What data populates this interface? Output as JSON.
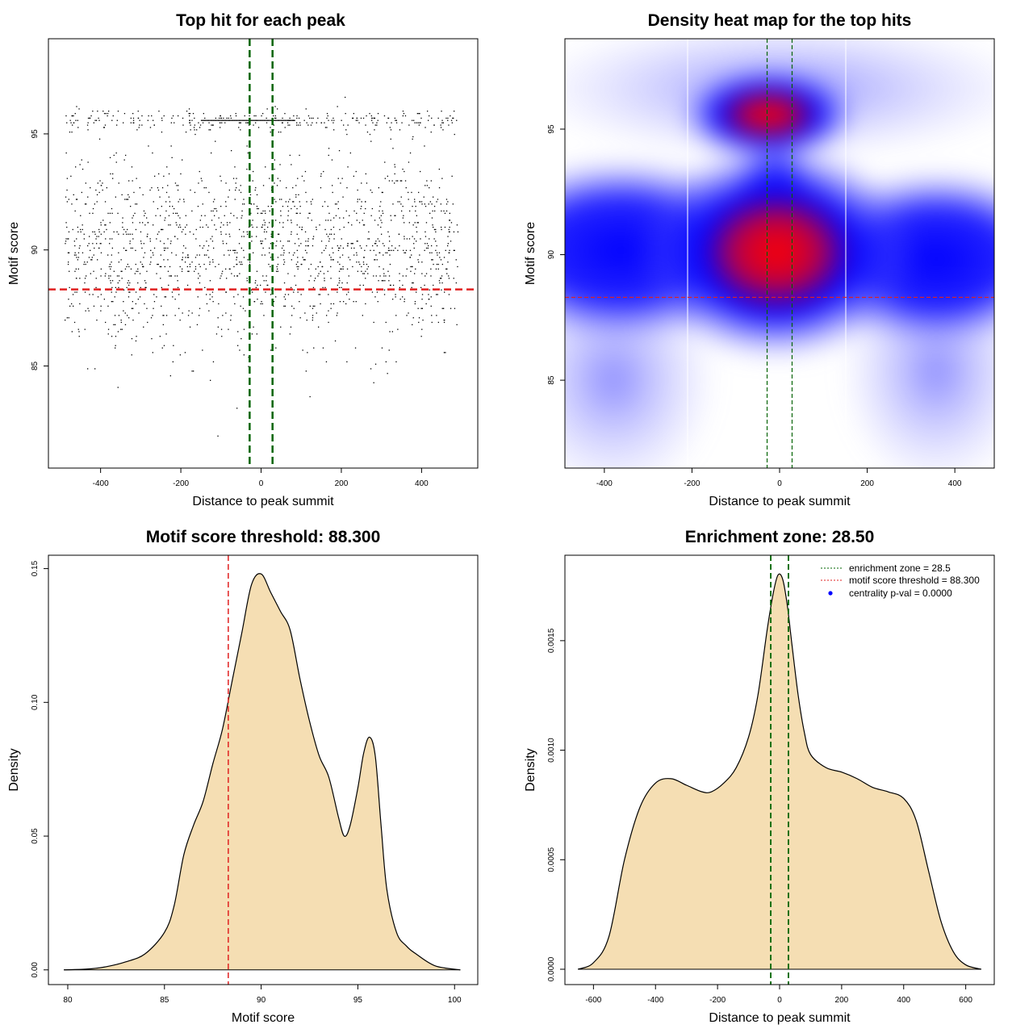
{
  "chart_data": [
    {
      "type": "scatter",
      "title": "Top hit for each peak",
      "xlabel": "Distance to peak summit",
      "ylabel": "Motif score",
      "xlim": [
        -530,
        540
      ],
      "ylim": [
        80.6,
        99.1
      ],
      "xticks": [
        -400,
        -200,
        0,
        200,
        400
      ],
      "yticks": [
        85,
        90,
        95
      ],
      "xtick_labels": [
        "-400",
        "-200",
        "0",
        "200",
        "400"
      ],
      "ytick_labels": [
        "85",
        "90",
        "95"
      ],
      "point_distribution": {
        "x_range": [
          -490,
          490
        ],
        "y_range": [
          81.5,
          98.5
        ],
        "main_cluster_y": 90.0,
        "secondary_cluster_y": 95.6,
        "approx_points": 1900
      },
      "reference_lines": {
        "vertical": [
          -28.5,
          28.5
        ],
        "vertical_color": "#006400",
        "horizontal": [
          88.3
        ],
        "horizontal_color": "#e02020"
      }
    },
    {
      "type": "heatmap",
      "title": "Density heat map for the top hits",
      "xlabel": "Distance to peak summit",
      "ylabel": "Motif score",
      "xlim": [
        -490,
        490
      ],
      "ylim": [
        81.5,
        98.6
      ],
      "xticks": [
        -400,
        -200,
        0,
        200,
        400
      ],
      "yticks": [
        85,
        90,
        95
      ],
      "xtick_labels": [
        "-400",
        "-200",
        "0",
        "200",
        "400"
      ],
      "ytick_labels": [
        "85",
        "90",
        "95"
      ],
      "colors": [
        "#ffffff",
        "#0000ff",
        "#ff0000"
      ],
      "density_peaks": [
        {
          "x": -20,
          "y": 95.6,
          "level": "high"
        },
        {
          "x": 0,
          "y": 90.2,
          "level": "high"
        },
        {
          "x": -380,
          "y": 90.0,
          "level": "medium"
        },
        {
          "x": 380,
          "y": 90.0,
          "level": "medium"
        }
      ],
      "reference_lines": {
        "vertical": [
          -28.5,
          28.5
        ],
        "vertical_color": "#006400",
        "horizontal": [
          88.3
        ],
        "horizontal_color": "#e02020"
      }
    },
    {
      "type": "area",
      "title": "Motif score threshold: 88.300",
      "xlabel": "Motif score",
      "ylabel": "Density",
      "xlim": [
        79.0,
        101.2
      ],
      "ylim": [
        -0.0055,
        0.155
      ],
      "xticks": [
        80,
        85,
        90,
        95,
        100
      ],
      "yticks": [
        0.0,
        0.05,
        0.1,
        0.15
      ],
      "xtick_labels": [
        "80",
        "85",
        "90",
        "95",
        "100"
      ],
      "ytick_labels": [
        "0.00",
        "0.05",
        "0.10",
        "0.15"
      ],
      "fill_color": "#f5deb3",
      "x": [
        79.8,
        81,
        82,
        83,
        84,
        85,
        85.5,
        86,
        86.5,
        87,
        87.5,
        88,
        88.5,
        89,
        89.5,
        90,
        90.5,
        91,
        91.5,
        92,
        92.5,
        93,
        93.5,
        94,
        94.3,
        94.6,
        95,
        95.3,
        95.6,
        95.9,
        96.2,
        96.5,
        97,
        97.5,
        98,
        99,
        100.3
      ],
      "y": [
        0.0,
        0.0003,
        0.0012,
        0.003,
        0.006,
        0.014,
        0.024,
        0.043,
        0.054,
        0.063,
        0.077,
        0.09,
        0.108,
        0.126,
        0.144,
        0.148,
        0.141,
        0.134,
        0.127,
        0.109,
        0.093,
        0.08,
        0.072,
        0.057,
        0.05,
        0.054,
        0.068,
        0.081,
        0.087,
        0.08,
        0.054,
        0.03,
        0.014,
        0.009,
        0.006,
        0.0015,
        0.0
      ],
      "reference_lines": {
        "vertical": [
          88.3
        ],
        "vertical_color": "#e02020"
      }
    },
    {
      "type": "area",
      "title": "Enrichment zone: 28.50",
      "xlabel": "Distance to peak summit",
      "ylabel": "Density",
      "xlim": [
        -692,
        692
      ],
      "ylim": [
        -7e-05,
        0.00189
      ],
      "xticks": [
        -600,
        -400,
        -200,
        0,
        200,
        400,
        600
      ],
      "yticks": [
        0.0,
        0.0005,
        0.001,
        0.0015
      ],
      "xtick_labels": [
        "-600",
        "-400",
        "-200",
        "0",
        "200",
        "400",
        "600"
      ],
      "ytick_labels": [
        "0.0000",
        "0.0005",
        "0.0010",
        "0.0015"
      ],
      "fill_color": "#f5deb3",
      "x": [
        -650,
        -600,
        -550,
        -500,
        -450,
        -400,
        -350,
        -300,
        -250,
        -220,
        -180,
        -140,
        -100,
        -70,
        -40,
        -20,
        -5,
        10,
        25,
        40,
        60,
        80,
        100,
        150,
        200,
        250,
        300,
        350,
        400,
        440,
        480,
        520,
        560,
        600,
        650
      ],
      "y": [
        0.0,
        3e-05,
        0.00015,
        0.0005,
        0.00074,
        0.00085,
        0.00087,
        0.00084,
        0.00081,
        0.00081,
        0.00085,
        0.00092,
        0.00106,
        0.00125,
        0.00155,
        0.00172,
        0.0018,
        0.00178,
        0.00166,
        0.00148,
        0.00125,
        0.00108,
        0.00098,
        0.00092,
        0.0009,
        0.00087,
        0.00083,
        0.00081,
        0.00078,
        0.00068,
        0.00045,
        0.00022,
        8e-05,
        2e-05,
        0.0
      ],
      "reference_lines": {
        "vertical": [
          -28.5,
          28.5
        ],
        "vertical_color": "#006400"
      },
      "legend": {
        "placement": "top-right",
        "items": [
          {
            "label": "enrichment zone = 28.5",
            "color": "#006400",
            "style": "dotted"
          },
          {
            "label": "motif score threshold = 88.300",
            "color": "#e02020",
            "style": "dotted"
          },
          {
            "label": "centrality p-val = 0.0000",
            "color": "#0000ff",
            "style": "point"
          }
        ]
      }
    }
  ]
}
